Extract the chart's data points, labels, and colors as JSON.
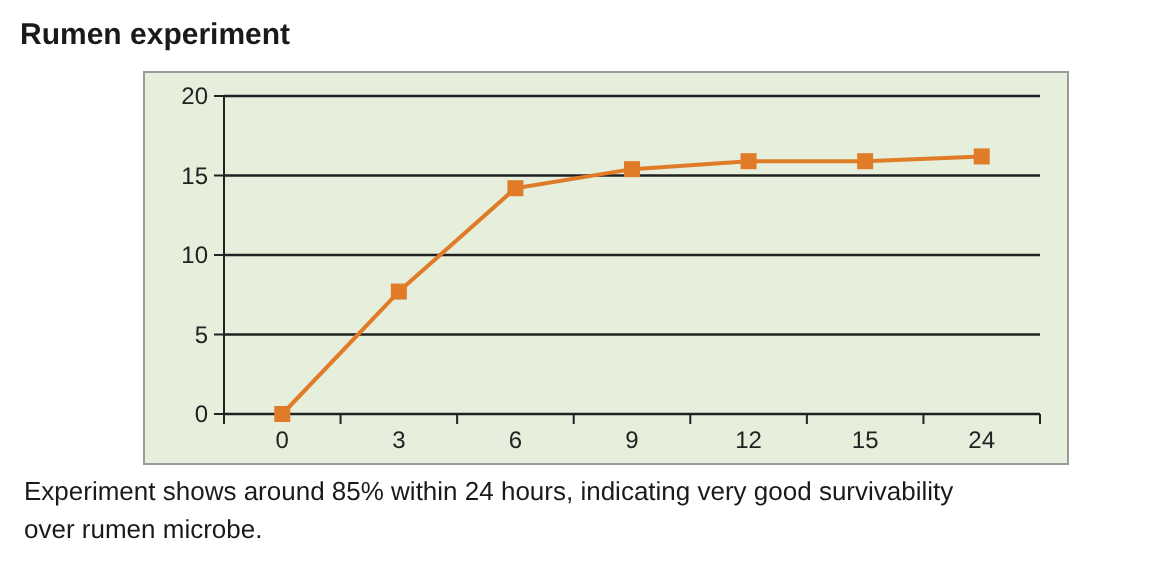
{
  "chart_data": {
    "type": "line",
    "title": "Rumen experiment",
    "categories": [
      "0",
      "3",
      "6",
      "9",
      "12",
      "15",
      "24"
    ],
    "series": [
      {
        "color": "#e07b28",
        "values": [
          0,
          7.7,
          14.2,
          15.4,
          15.9,
          15.9,
          16.2
        ]
      }
    ],
    "ylim": [
      0,
      20
    ],
    "yticks": [
      0,
      5,
      10,
      15,
      20
    ],
    "grid": "y",
    "marker": "square",
    "line_style": "solid",
    "annotations": [
      "Experiment shows around 85% within 24 hours, indicating very good survivability over rumen microbe."
    ]
  }
}
